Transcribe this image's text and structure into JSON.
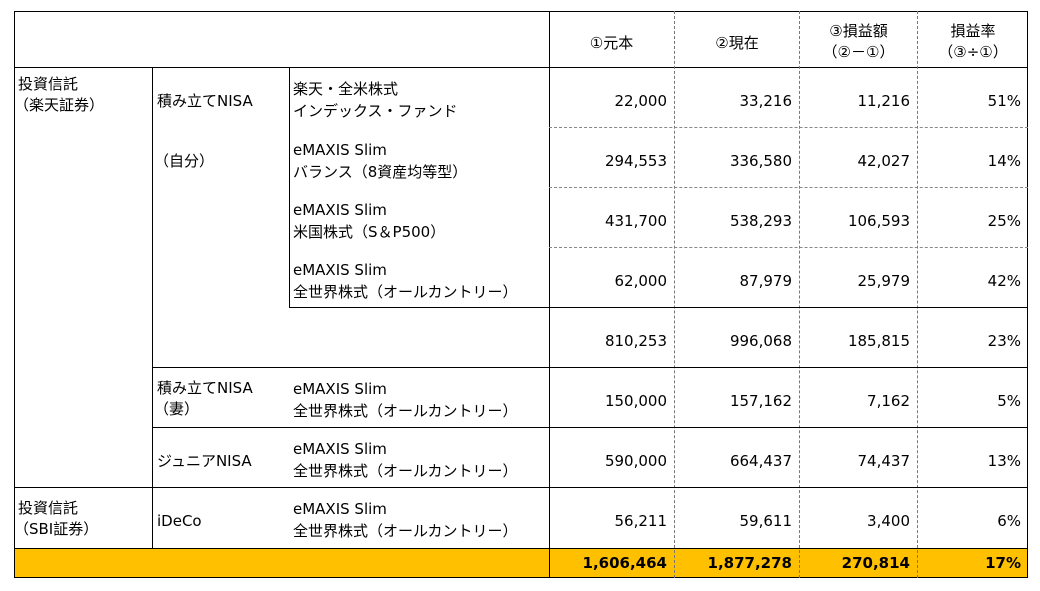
{
  "header": {
    "col_principal": "①元本",
    "col_current": "②現在",
    "col_gain_line1": "③損益額",
    "col_gain_line2": "（②－①）",
    "col_rate_line1": "損益率",
    "col_rate_line2": "（③÷①）"
  },
  "groups": {
    "rakuten_line1": "投資信託",
    "rakuten_line2": "（楽天証券）",
    "sbi_line1": "投資信託",
    "sbi_line2": "（SBI証券）"
  },
  "accounts": {
    "tsumitate_self_line1": "積み立てNISA",
    "tsumitate_self_line2": "（自分）",
    "tsumitate_wife_line1": "積み立てNISA",
    "tsumitate_wife_line2": "（妻）",
    "junior": "ジュニアNISA",
    "ideco": "iDeCo"
  },
  "rows": [
    {
      "fund_line1": "楽天・全米株式",
      "fund_line2": "インデックス・ファンド",
      "principal": "22,000",
      "current": "33,216",
      "gain": "11,216",
      "rate": "51%"
    },
    {
      "fund_line1": "eMAXIS Slim",
      "fund_line2": "バランス（8資産均等型）",
      "principal": "294,553",
      "current": "336,580",
      "gain": "42,027",
      "rate": "14%"
    },
    {
      "fund_line1": "eMAXIS Slim",
      "fund_line2": "米国株式（S＆P500）",
      "principal": "431,700",
      "current": "538,293",
      "gain": "106,593",
      "rate": "25%"
    },
    {
      "fund_line1": "eMAXIS Slim",
      "fund_line2": "全世界株式（オールカントリー）",
      "principal": "62,000",
      "current": "87,979",
      "gain": "25,979",
      "rate": "42%"
    },
    {
      "principal": "810,253",
      "current": "996,068",
      "gain": "185,815",
      "rate": "23%"
    },
    {
      "fund_line1": "eMAXIS Slim",
      "fund_line2": "全世界株式（オールカントリー）",
      "principal": "150,000",
      "current": "157,162",
      "gain": "7,162",
      "rate": "5%"
    },
    {
      "fund_line1": "eMAXIS Slim",
      "fund_line2": "全世界株式（オールカントリー）",
      "principal": "590,000",
      "current": "664,437",
      "gain": "74,437",
      "rate": "13%"
    },
    {
      "fund_line1": "eMAXIS Slim",
      "fund_line2": "全世界株式（オールカントリー）",
      "principal": "56,211",
      "current": "59,611",
      "gain": "3,400",
      "rate": "6%"
    }
  ],
  "total": {
    "principal": "1,606,464",
    "current": "1,877,278",
    "gain": "270,814",
    "rate": "17%"
  },
  "colors": {
    "total_background": "#FFC000"
  }
}
